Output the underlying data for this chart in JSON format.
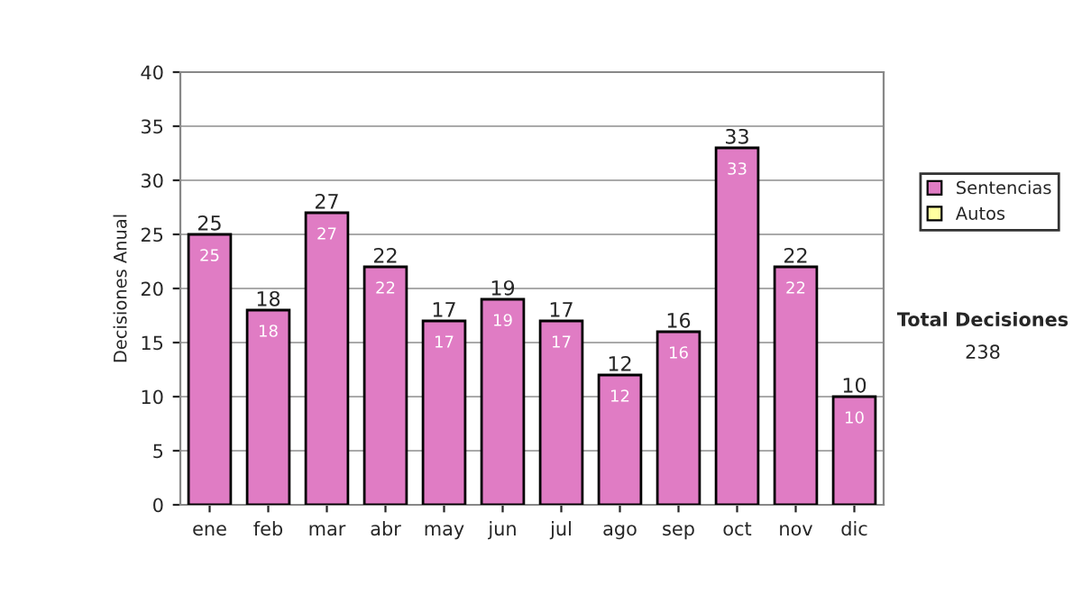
{
  "chart_data": {
    "type": "bar",
    "stacked": true,
    "categories": [
      "ene",
      "feb",
      "mar",
      "abr",
      "may",
      "jun",
      "jul",
      "ago",
      "sep",
      "oct",
      "nov",
      "dic"
    ],
    "series": [
      {
        "name": "Sentencias",
        "color": "#e07cc4",
        "values": [
          25,
          18,
          27,
          22,
          17,
          19,
          17,
          12,
          16,
          33,
          22,
          10
        ],
        "value_labels": [
          "25",
          "18",
          "27",
          "22",
          "17",
          "19",
          "17",
          "12",
          "16",
          "33",
          "22",
          "10"
        ]
      },
      {
        "name": "Autos",
        "color": "#ffffa0",
        "values": [
          null,
          null,
          null,
          null,
          null,
          null,
          null,
          null,
          null,
          null,
          null,
          null
        ]
      }
    ],
    "totals": [
      "25",
      "18",
      "27",
      "22",
      "17",
      "19",
      "17",
      "12",
      "16",
      "33",
      "22",
      "10"
    ],
    "ylabel": "Decisiones Anual",
    "ylim": [
      0,
      40
    ],
    "yticks": [
      0,
      5,
      10,
      15,
      20,
      25,
      30,
      35,
      40
    ],
    "grid": "y",
    "legend": "right",
    "annotations": [
      "Total Decisiones",
      "238"
    ]
  }
}
